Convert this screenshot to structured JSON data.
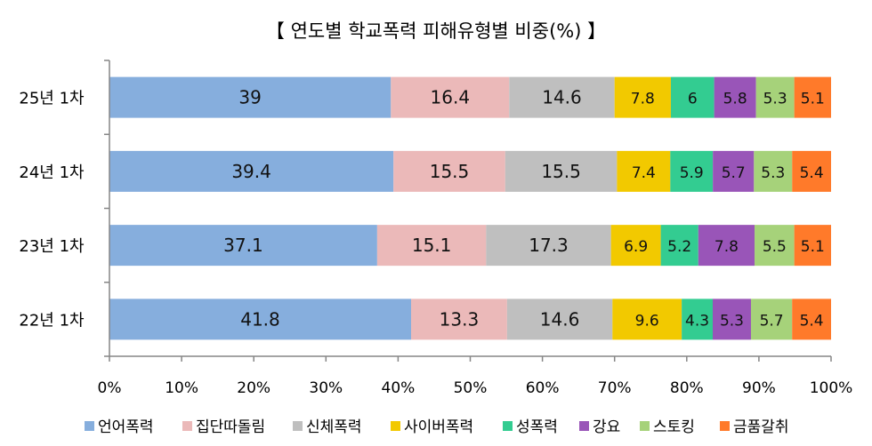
{
  "chart_data": {
    "type": "bar",
    "orientation": "horizontal",
    "stacked": "percent",
    "title": "【 연도별 학교폭력 피해유형별 비중(%) 】",
    "categories": [
      "25년 1차",
      "24년 1차",
      "23년 1차",
      "22년 1차"
    ],
    "series": [
      {
        "name": "언어폭력",
        "color": "#86AEDD",
        "values": [
          39,
          39.4,
          37.1,
          41.8
        ]
      },
      {
        "name": "집단따돌림",
        "color": "#EBB9B9",
        "values": [
          16.4,
          15.5,
          15.1,
          13.3
        ]
      },
      {
        "name": "신체폭력",
        "color": "#BFBFBF",
        "values": [
          14.6,
          15.5,
          17.3,
          14.6
        ]
      },
      {
        "name": "사이버폭력",
        "color": "#F2C900",
        "values": [
          7.8,
          7.4,
          6.9,
          9.6
        ]
      },
      {
        "name": "성폭력",
        "color": "#33CC91",
        "values": [
          6,
          5.9,
          5.2,
          4.3
        ]
      },
      {
        "name": "강요",
        "color": "#9955B8",
        "values": [
          5.8,
          5.7,
          7.8,
          5.3
        ]
      },
      {
        "name": "스토킹",
        "color": "#A6D27A",
        "values": [
          5.3,
          5.3,
          5.5,
          5.7
        ]
      },
      {
        "name": "금품갈취",
        "color": "#FF7A2A",
        "values": [
          5.1,
          5.4,
          5.1,
          5.4
        ]
      }
    ],
    "xlim": [
      0,
      100
    ],
    "xticks": [
      "0%",
      "10%",
      "20%",
      "30%",
      "40%",
      "50%",
      "60%",
      "70%",
      "80%",
      "90%",
      "100%"
    ],
    "grid": false,
    "legend": "bottom"
  }
}
